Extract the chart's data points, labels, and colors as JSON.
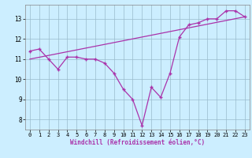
{
  "x": [
    0,
    1,
    2,
    3,
    4,
    5,
    6,
    7,
    8,
    9,
    10,
    11,
    12,
    13,
    14,
    15,
    16,
    17,
    18,
    19,
    20,
    21,
    22,
    23
  ],
  "y_main": [
    11.4,
    11.5,
    11.0,
    10.5,
    11.1,
    11.1,
    11.0,
    11.0,
    10.8,
    10.3,
    9.5,
    9.0,
    7.7,
    9.6,
    9.1,
    10.3,
    12.1,
    12.7,
    12.8,
    13.0,
    13.0,
    13.4,
    13.4,
    13.1
  ],
  "trend_x": [
    0,
    23
  ],
  "trend_y": [
    11.0,
    13.1
  ],
  "line_color": "#aa33aa",
  "bg_color": "#cceeff",
  "grid_color": "#99bbcc",
  "xlabel": "Windchill (Refroidissement éolien,°C)",
  "ylim": [
    7.5,
    13.7
  ],
  "xlim": [
    -0.5,
    23.5
  ],
  "yticks": [
    8,
    9,
    10,
    11,
    12,
    13
  ],
  "xticks": [
    0,
    1,
    2,
    3,
    4,
    5,
    6,
    7,
    8,
    9,
    10,
    11,
    12,
    13,
    14,
    15,
    16,
    17,
    18,
    19,
    20,
    21,
    22,
    23
  ]
}
